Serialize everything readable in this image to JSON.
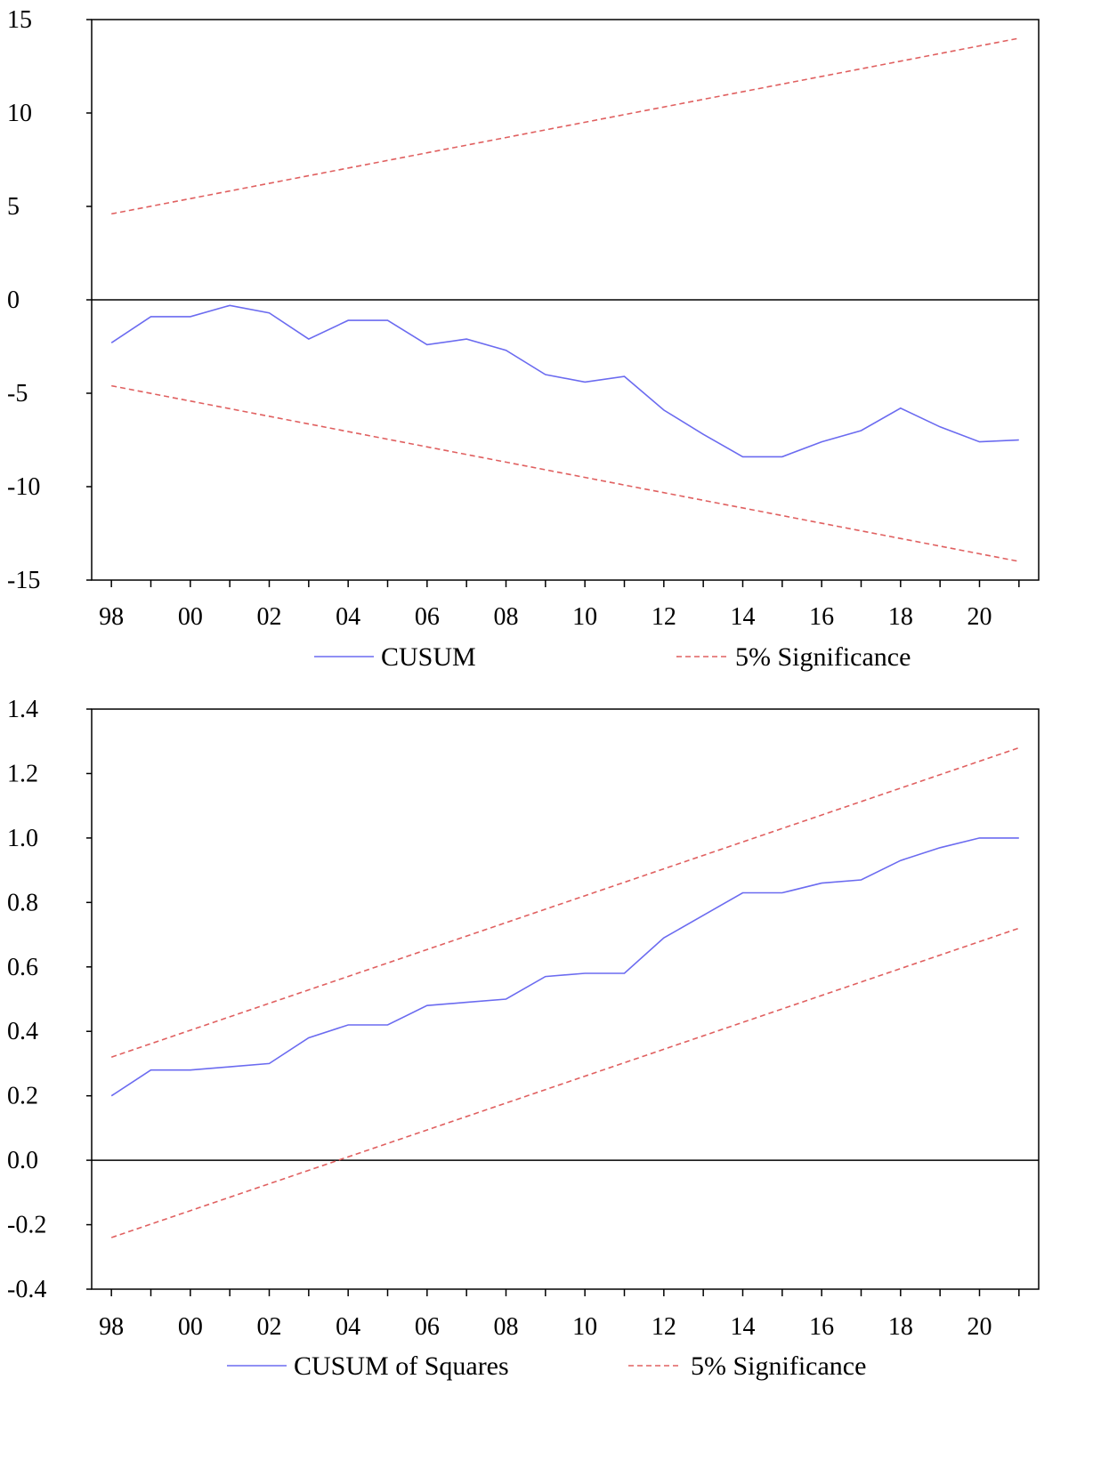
{
  "chart_data": [
    {
      "type": "line",
      "x_tick_labels": [
        "98",
        "00",
        "02",
        "04",
        "06",
        "08",
        "10",
        "12",
        "14",
        "16",
        "18",
        "20"
      ],
      "ylim": [
        -15,
        15
      ],
      "y_ticks": [
        -15,
        -10,
        -5,
        0,
        5,
        10,
        15
      ],
      "y_tick_labels": [
        "-15",
        "-10",
        "-5",
        "0",
        "5",
        "10",
        "15"
      ],
      "xlim": [
        1997.5,
        2021.5
      ],
      "grid": false,
      "reference_line": 0,
      "legend": {
        "position": "bottom",
        "entries": [
          "CUSUM",
          "5% Significance"
        ]
      },
      "series": [
        {
          "name": "CUSUM",
          "color": "#6b6bf0",
          "style": "solid",
          "x": [
            1998,
            1999,
            2000,
            2001,
            2002,
            2003,
            2004,
            2005,
            2006,
            2007,
            2008,
            2009,
            2010,
            2011,
            2012,
            2013,
            2014,
            2015,
            2016,
            2017,
            2018,
            2019,
            2020,
            2021
          ],
          "y": [
            -2.3,
            -0.9,
            -0.9,
            -0.3,
            -0.7,
            -2.1,
            -1.1,
            -1.1,
            -2.4,
            -2.1,
            -2.7,
            -4.0,
            -4.4,
            -4.1,
            -5.9,
            -7.2,
            -8.4,
            -8.4,
            -7.6,
            -7.0,
            -5.8,
            -6.8,
            -7.6,
            -7.5
          ]
        },
        {
          "name": "5% Significance",
          "color": "#e06060",
          "style": "dashed",
          "x": [
            1998,
            2021
          ],
          "y": [
            4.6,
            14.0
          ]
        },
        {
          "name": "5% Significance",
          "color": "#e06060",
          "style": "dashed",
          "x": [
            1998,
            2021
          ],
          "y": [
            -4.6,
            -14.0
          ]
        }
      ]
    },
    {
      "type": "line",
      "x_tick_labels": [
        "98",
        "00",
        "02",
        "04",
        "06",
        "08",
        "10",
        "12",
        "14",
        "16",
        "18",
        "20"
      ],
      "ylim": [
        -0.4,
        1.4
      ],
      "y_ticks": [
        -0.4,
        -0.2,
        0.0,
        0.2,
        0.4,
        0.6,
        0.8,
        1.0,
        1.2,
        1.4
      ],
      "y_tick_labels": [
        "-0.4",
        "-0.2",
        "0.0",
        "0.2",
        "0.4",
        "0.6",
        "0.8",
        "1.0",
        "1.2",
        "1.4"
      ],
      "xlim": [
        1997.5,
        2021.5
      ],
      "grid": false,
      "reference_line": 0,
      "legend": {
        "position": "bottom",
        "entries": [
          "CUSUM of Squares",
          "5% Significance"
        ]
      },
      "series": [
        {
          "name": "CUSUM of Squares",
          "color": "#6b6bf0",
          "style": "solid",
          "x": [
            1998,
            1999,
            2000,
            2001,
            2002,
            2003,
            2004,
            2005,
            2006,
            2007,
            2008,
            2009,
            2010,
            2011,
            2012,
            2013,
            2014,
            2015,
            2016,
            2017,
            2018,
            2019,
            2020,
            2021
          ],
          "y": [
            0.2,
            0.28,
            0.28,
            0.29,
            0.3,
            0.38,
            0.42,
            0.42,
            0.48,
            0.49,
            0.5,
            0.57,
            0.58,
            0.58,
            0.69,
            0.76,
            0.83,
            0.83,
            0.86,
            0.87,
            0.93,
            0.97,
            1.0,
            1.0
          ]
        },
        {
          "name": "5% Significance",
          "color": "#e06060",
          "style": "dashed",
          "x": [
            1998,
            2021
          ],
          "y": [
            0.32,
            1.28
          ]
        },
        {
          "name": "5% Significance",
          "color": "#e06060",
          "style": "dashed",
          "x": [
            1998,
            2021
          ],
          "y": [
            -0.24,
            0.72
          ]
        }
      ]
    }
  ]
}
